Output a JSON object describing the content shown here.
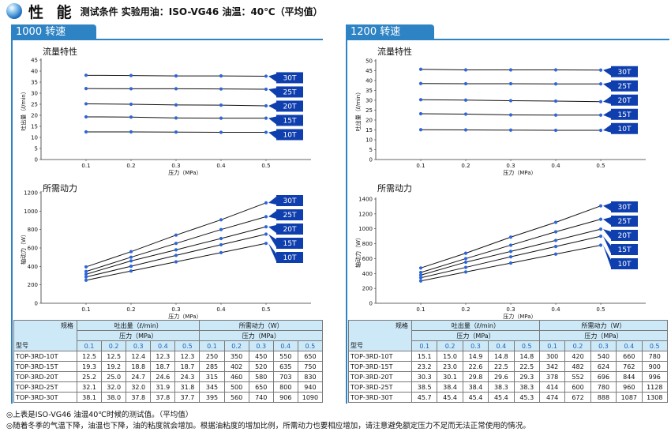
{
  "header": {
    "title": "性 能",
    "subtitle": "测试条件 实验用油：ISO-VG46 油温：40℃（平均值）"
  },
  "panels": [
    {
      "speed_label": "1000 转速",
      "table": {
        "corner_top": "规格",
        "corner_bottom": "型号",
        "group1": "吐出量（ℓ/min）",
        "group2": "所需动力（W）",
        "pressure_label": "压力（MPa）",
        "pressures": [
          "0.1",
          "0.2",
          "0.3",
          "0.4",
          "0.5"
        ],
        "rows": [
          {
            "model": "TOP-3RD-10T",
            "flow": [
              "12.5",
              "12.5",
              "12.4",
              "12.3",
              "12.3"
            ],
            "power": [
              "250",
              "350",
              "450",
              "550",
              "650"
            ]
          },
          {
            "model": "TOP-3RD-15T",
            "flow": [
              "19.3",
              "19.2",
              "18.8",
              "18.7",
              "18.7"
            ],
            "power": [
              "285",
              "402",
              "520",
              "635",
              "750"
            ]
          },
          {
            "model": "TOP-3RD-20T",
            "flow": [
              "25.2",
              "25.0",
              "24.7",
              "24.6",
              "24.3"
            ],
            "power": [
              "315",
              "460",
              "580",
              "703",
              "830"
            ]
          },
          {
            "model": "TOP-3RD-25T",
            "flow": [
              "32.1",
              "32.0",
              "32.0",
              "31.9",
              "31.8"
            ],
            "power": [
              "345",
              "500",
              "650",
              "800",
              "940"
            ]
          },
          {
            "model": "TOP-3RD-30T",
            "flow": [
              "38.1",
              "38.0",
              "37.8",
              "37.8",
              "37.7"
            ],
            "power": [
              "395",
              "560",
              "740",
              "906",
              "1090"
            ]
          }
        ]
      }
    },
    {
      "speed_label": "1200 转速",
      "table": {
        "corner_top": "规格",
        "corner_bottom": "型号",
        "group1": "吐出量（ℓ/min）",
        "group2": "所需动力（W）",
        "pressure_label": "压力（MPa）",
        "pressures": [
          "0.1",
          "0.2",
          "0.3",
          "0.4",
          "0.5"
        ],
        "rows": [
          {
            "model": "TOP-3RD-10T",
            "flow": [
              "15.1",
              "15.0",
              "14.9",
              "14.8",
              "14.8"
            ],
            "power": [
              "300",
              "420",
              "540",
              "660",
              "780"
            ]
          },
          {
            "model": "TOP-3RD-15T",
            "flow": [
              "23.2",
              "23.0",
              "22.6",
              "22.5",
              "22.5"
            ],
            "power": [
              "342",
              "482",
              "624",
              "762",
              "900"
            ]
          },
          {
            "model": "TOP-3RD-20T",
            "flow": [
              "30.3",
              "30.1",
              "29.8",
              "29.6",
              "29.3"
            ],
            "power": [
              "378",
              "552",
              "696",
              "844",
              "996"
            ]
          },
          {
            "model": "TOP-3RD-25T",
            "flow": [
              "38.5",
              "38.4",
              "38.4",
              "38.3",
              "38.3"
            ],
            "power": [
              "414",
              "600",
              "780",
              "960",
              "1128"
            ]
          },
          {
            "model": "TOP-3RD-30T",
            "flow": [
              "45.7",
              "45.4",
              "45.4",
              "45.4",
              "45.3"
            ],
            "power": [
              "474",
              "672",
              "888",
              "1087",
              "1308"
            ]
          }
        ]
      }
    }
  ],
  "notes": [
    "◎上表是ISO-VG46 油温40℃时候的测试值。（平均值）",
    "◎随着冬季的气温下降，油温也下降，油的粘度就会增加。根据油粘度的增加比例，所需动力也要相应增加，请注意避免额定压力不足而无法正常使用的情况。"
  ],
  "colors": {
    "accent": "#2e83c4",
    "tag": "#0f3fae",
    "marker": "#2e66d8",
    "line": "#111111",
    "table_header": "#cde9f8"
  },
  "chart_data": [
    {
      "type": "line",
      "title": "流量特性",
      "xlabel": "压力（MPa）",
      "ylabel": "吐出量（ℓ/min）",
      "x": [
        0.1,
        0.2,
        0.3,
        0.4,
        0.5
      ],
      "x_ticks": [
        "0",
        "0.1",
        "0.2",
        "0.3",
        "0.4",
        "0.5"
      ],
      "xlim": [
        0,
        0.6
      ],
      "ylim": [
        0,
        45
      ],
      "y_ticks": [
        0,
        5,
        10,
        15,
        20,
        25,
        30,
        35,
        40,
        45
      ],
      "grid": false,
      "legend": "right-tags",
      "series": [
        {
          "name": "30T",
          "values": [
            38.1,
            38.0,
            37.8,
            37.8,
            37.7
          ]
        },
        {
          "name": "25T",
          "values": [
            32.1,
            32.0,
            32.0,
            31.9,
            31.8
          ]
        },
        {
          "name": "20T",
          "values": [
            25.2,
            25.0,
            24.7,
            24.6,
            24.3
          ]
        },
        {
          "name": "15T",
          "values": [
            19.3,
            19.2,
            18.8,
            18.7,
            18.7
          ]
        },
        {
          "name": "10T",
          "values": [
            12.5,
            12.5,
            12.4,
            12.3,
            12.3
          ]
        }
      ]
    },
    {
      "type": "line",
      "title": "所需动力",
      "xlabel": "压力（MPa）",
      "ylabel": "轴动力（W）",
      "x": [
        0.1,
        0.2,
        0.3,
        0.4,
        0.5
      ],
      "x_ticks": [
        "0",
        "0.1",
        "0.2",
        "0.3",
        "0.4",
        "0.5"
      ],
      "xlim": [
        0,
        0.6
      ],
      "ylim": [
        0,
        1200
      ],
      "y_ticks": [
        0,
        200,
        400,
        600,
        800,
        1000,
        1200
      ],
      "grid": false,
      "legend": "right-tags",
      "series": [
        {
          "name": "30T",
          "values": [
            395,
            560,
            740,
            906,
            1090
          ]
        },
        {
          "name": "25T",
          "values": [
            345,
            500,
            650,
            800,
            940
          ]
        },
        {
          "name": "20T",
          "values": [
            315,
            460,
            580,
            703,
            830
          ]
        },
        {
          "name": "15T",
          "values": [
            285,
            402,
            520,
            635,
            750
          ]
        },
        {
          "name": "10T",
          "values": [
            250,
            350,
            450,
            550,
            650
          ]
        }
      ]
    },
    {
      "type": "line",
      "title": "流量特性",
      "xlabel": "压力（MPa）",
      "ylabel": "吐出量（ℓ/min）",
      "x": [
        0.1,
        0.2,
        0.3,
        0.4,
        0.5
      ],
      "x_ticks": [
        "0",
        "0.1",
        "0.2",
        "0.3",
        "0.4",
        "0.5"
      ],
      "xlim": [
        0,
        0.6
      ],
      "ylim": [
        0,
        50
      ],
      "y_ticks": [
        0,
        5,
        10,
        15,
        20,
        25,
        30,
        35,
        40,
        45,
        50
      ],
      "grid": false,
      "legend": "right-tags",
      "series": [
        {
          "name": "30T",
          "values": [
            45.7,
            45.4,
            45.4,
            45.4,
            45.3
          ]
        },
        {
          "name": "25T",
          "values": [
            38.5,
            38.4,
            38.4,
            38.3,
            38.3
          ]
        },
        {
          "name": "20T",
          "values": [
            30.3,
            30.1,
            29.8,
            29.6,
            29.3
          ]
        },
        {
          "name": "15T",
          "values": [
            23.2,
            23.0,
            22.6,
            22.5,
            22.5
          ]
        },
        {
          "name": "10T",
          "values": [
            15.1,
            15.0,
            14.9,
            14.8,
            14.8
          ]
        }
      ]
    },
    {
      "type": "line",
      "title": "所需动力",
      "xlabel": "压力（MPa）",
      "ylabel": "轴动力（W）",
      "x": [
        0.1,
        0.2,
        0.3,
        0.4,
        0.5
      ],
      "x_ticks": [
        "0",
        "0.1",
        "0.2",
        "0.3",
        "0.4",
        "0.5"
      ],
      "xlim": [
        0,
        0.6
      ],
      "ylim": [
        0,
        1400
      ],
      "y_ticks": [
        0,
        200,
        400,
        600,
        800,
        1000,
        1200,
        1400
      ],
      "grid": false,
      "legend": "right-tags",
      "series": [
        {
          "name": "30T",
          "values": [
            474,
            672,
            888,
            1087,
            1308
          ]
        },
        {
          "name": "25T",
          "values": [
            414,
            600,
            780,
            960,
            1128
          ]
        },
        {
          "name": "20T",
          "values": [
            378,
            552,
            696,
            844,
            996
          ]
        },
        {
          "name": "15T",
          "values": [
            342,
            482,
            624,
            762,
            900
          ]
        },
        {
          "name": "10T",
          "values": [
            300,
            420,
            540,
            660,
            780
          ]
        }
      ]
    }
  ]
}
